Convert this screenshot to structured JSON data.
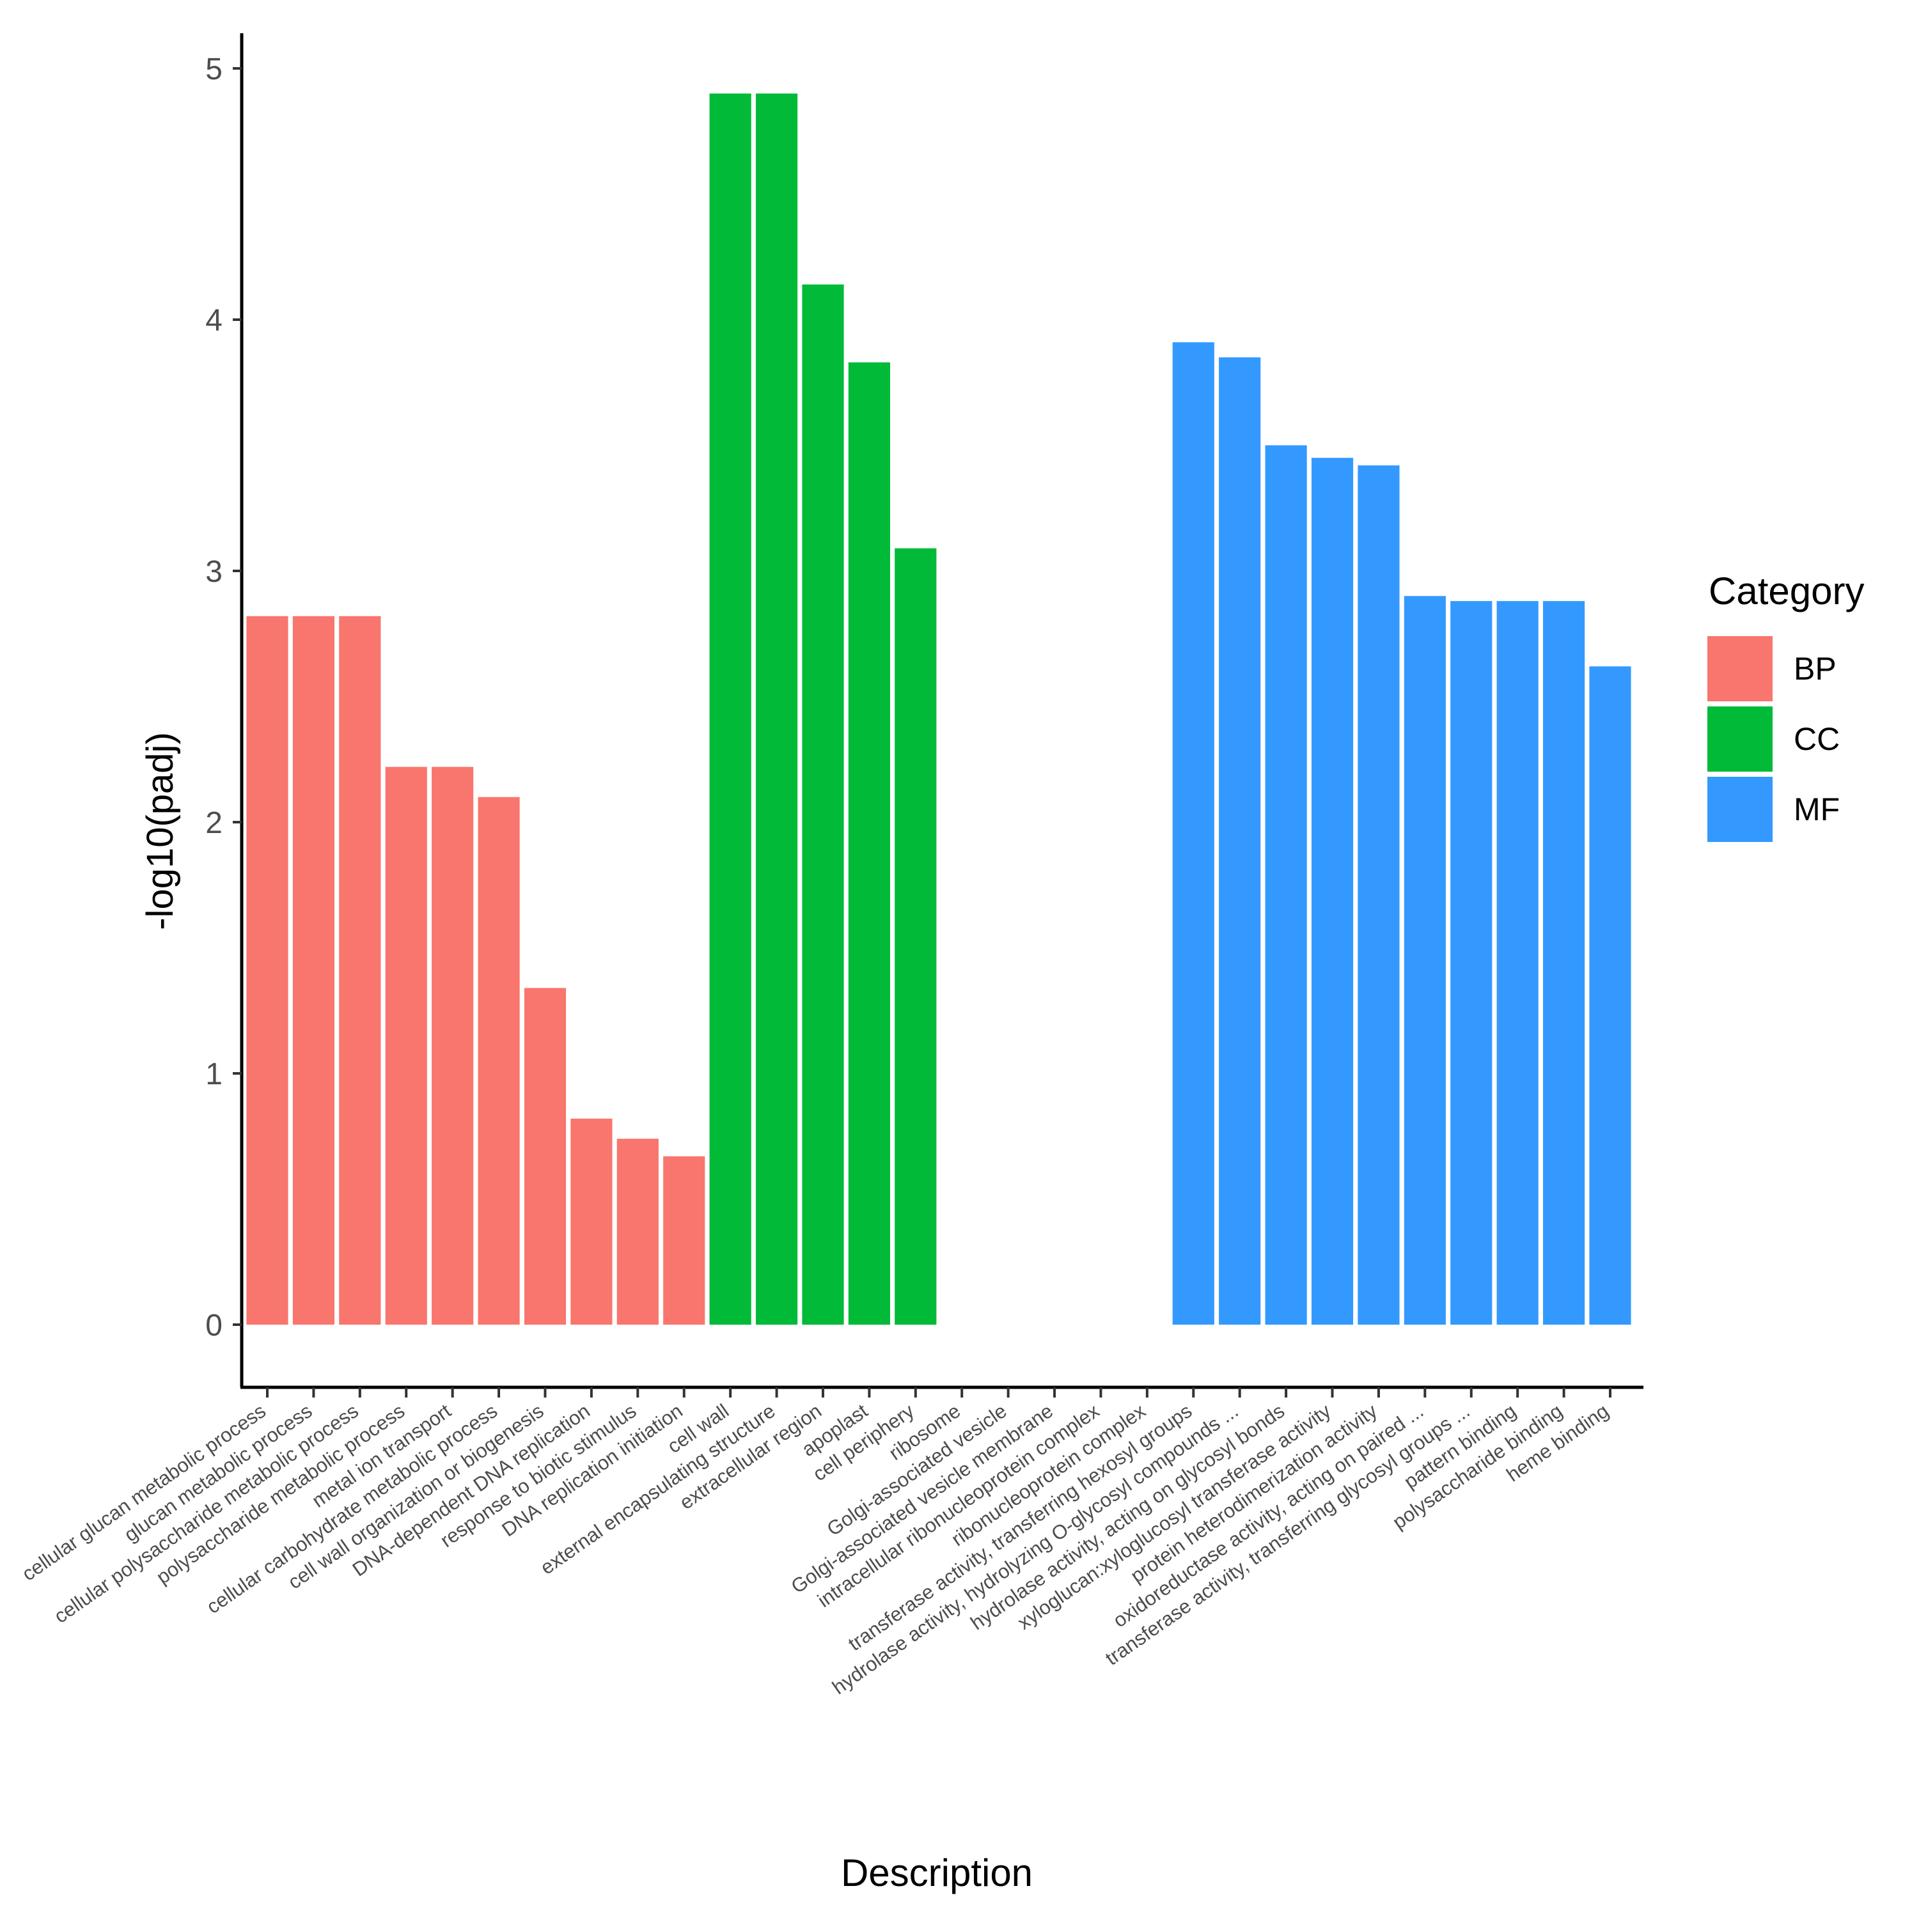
{
  "chart_data": {
    "type": "bar",
    "title": "",
    "xlabel": "Description",
    "ylabel": "-log10(padj)",
    "ylim": [
      0,
      5.25
    ],
    "yticks": [
      0,
      1,
      2,
      3,
      4,
      5
    ],
    "grid": false,
    "legend": {
      "title": "Category",
      "placement": "right",
      "entries": [
        {
          "name": "BP",
          "color": "#F8766D"
        },
        {
          "name": "CC",
          "color": "#00BA38"
        },
        {
          "name": "MF",
          "color": "#3399FF"
        }
      ]
    },
    "categories": [
      "cellular glucan metabolic process",
      "glucan metabolic process",
      "cellular polysaccharide metabolic process",
      "polysaccharide metabolic process",
      "metal ion transport",
      "cellular carbohydrate metabolic process",
      "cell wall organization or biogenesis",
      "DNA-dependent DNA replication",
      "response to biotic stimulus",
      "DNA replication initiation",
      "cell wall",
      "external encapsulating structure",
      "extracellular region",
      "apoplast",
      "cell periphery",
      "ribosome",
      "Golgi-associated vesicle",
      "Golgi-associated vesicle membrane",
      "intracellular ribonucleoprotein complex",
      "ribonucleoprotein complex",
      "transferase activity, transferring hexosyl groups",
      "hydrolase activity, hydrolyzing O-glycosyl compounds ...",
      "hydrolase activity, acting on glycosyl bonds",
      "xyloglucan:xyloglucosyl transferase activity",
      "protein heterodimerization activity",
      "oxidoreductase activity, acting on paired ...",
      "transferase activity, transferring glycosyl groups ...",
      "pattern binding",
      "polysaccharide binding",
      "heme binding"
    ],
    "series": [
      {
        "name": "BP",
        "color": "#F8766D",
        "values": [
          2.82,
          2.82,
          2.82,
          2.22,
          2.22,
          2.1,
          1.34,
          0.82,
          0.74,
          0.67,
          null,
          null,
          null,
          null,
          null,
          null,
          null,
          null,
          null,
          null,
          null,
          null,
          null,
          null,
          null,
          null,
          null,
          null,
          null,
          null
        ]
      },
      {
        "name": "CC",
        "color": "#00BA38",
        "values": [
          null,
          null,
          null,
          null,
          null,
          null,
          null,
          null,
          null,
          null,
          4.9,
          4.9,
          4.14,
          3.83,
          3.09,
          0,
          0,
          0,
          0,
          0,
          null,
          null,
          null,
          null,
          null,
          null,
          null,
          null,
          null,
          null
        ]
      },
      {
        "name": "MF",
        "color": "#3399FF",
        "values": [
          null,
          null,
          null,
          null,
          null,
          null,
          null,
          null,
          null,
          null,
          null,
          null,
          null,
          null,
          null,
          null,
          null,
          null,
          null,
          null,
          3.91,
          3.85,
          3.5,
          3.45,
          3.42,
          2.9,
          2.88,
          2.88,
          2.88,
          2.62
        ]
      }
    ]
  }
}
